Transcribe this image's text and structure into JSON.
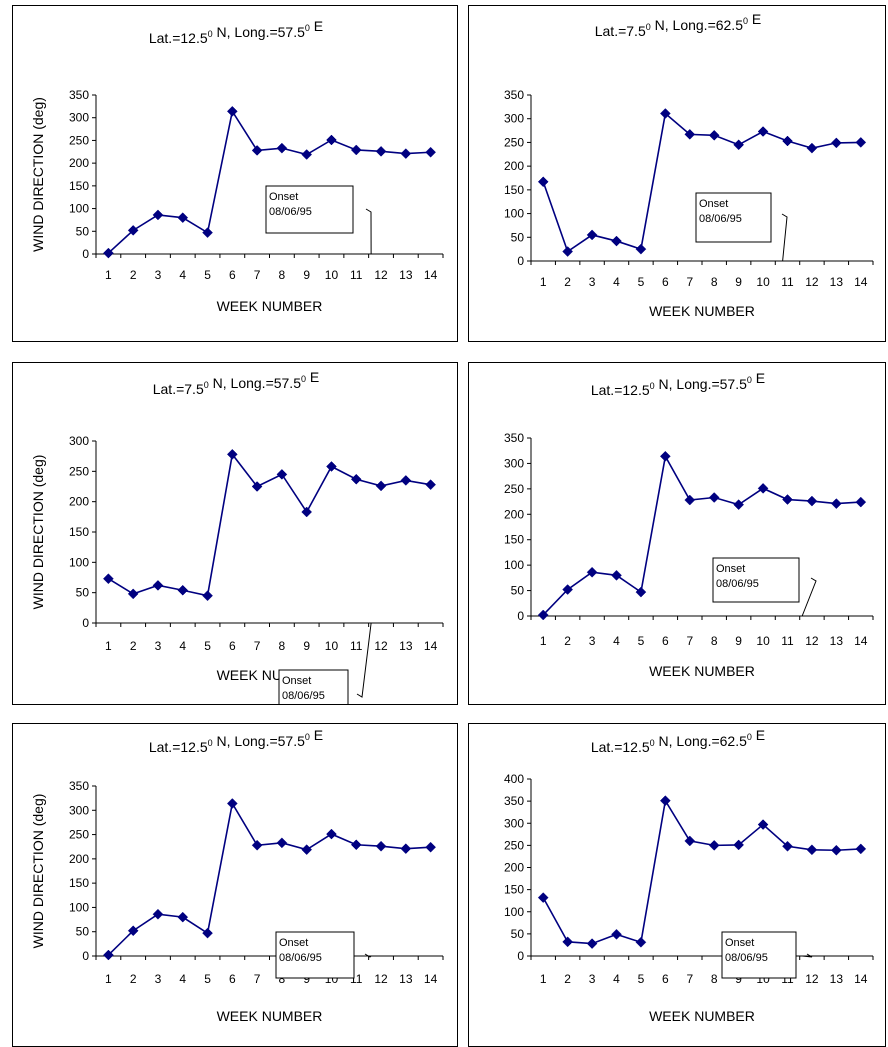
{
  "chart_data": [
    {
      "type": "line",
      "title": "Lat.=12.5",
      "title_sup": "0",
      "title_mid": " N, Long.=57.5",
      "title_sup2": "0",
      "title_end": " E",
      "xlabel": "WEEK NUMBER",
      "ylabel": "WIND DIRECTION (deg)",
      "x": [
        1,
        2,
        3,
        4,
        5,
        6,
        7,
        8,
        9,
        10,
        11,
        12,
        13,
        14
      ],
      "values": [
        2,
        52,
        86,
        80,
        47,
        314,
        228,
        233,
        219,
        251,
        229,
        226,
        221,
        224
      ],
      "yticks": [
        0,
        50,
        100,
        150,
        200,
        250,
        300,
        350
      ],
      "ylim": [
        0,
        350
      ],
      "annotation": {
        "line1": "Onset",
        "line2": "08/06/95",
        "week": 11.6
      },
      "line_color": "#000080"
    },
    {
      "type": "line",
      "title": "Lat.=7.5",
      "title_sup": "0",
      "title_mid": " N, Long.=62.5",
      "title_sup2": "0",
      "title_end": " E",
      "xlabel": "WEEK NUMBER",
      "ylabel": "",
      "x": [
        1,
        2,
        3,
        4,
        5,
        6,
        7,
        8,
        9,
        10,
        11,
        12,
        13,
        14
      ],
      "values": [
        167,
        20,
        55,
        42,
        25,
        311,
        267,
        265,
        245,
        273,
        253,
        238,
        249,
        250
      ],
      "yticks": [
        0,
        50,
        100,
        150,
        200,
        250,
        300,
        350
      ],
      "ylim": [
        0,
        350
      ],
      "annotation": {
        "line1": "Onset",
        "line2": "08/06/95",
        "week": 10.8
      },
      "line_color": "#000080"
    },
    {
      "type": "line",
      "title": "Lat.=7.5",
      "title_sup": "0",
      "title_mid": " N, Long.=57.5",
      "title_sup2": "0",
      "title_end": " E",
      "xlabel": "WEEK NUMBER",
      "ylabel": "WIND DIRECTION (deg)",
      "x": [
        1,
        2,
        3,
        4,
        5,
        6,
        7,
        8,
        9,
        10,
        11,
        12,
        13,
        14
      ],
      "values": [
        73,
        48,
        62,
        54,
        45,
        278,
        225,
        245,
        183,
        258,
        237,
        226,
        235,
        228
      ],
      "yticks": [
        0,
        50,
        100,
        150,
        200,
        250,
        300
      ],
      "ylim": [
        0,
        300
      ],
      "annotation": {
        "line1": "Onset",
        "line2": "08/06/95",
        "week": 11.6
      },
      "line_color": "#000080"
    },
    {
      "type": "line",
      "title": "Lat.=12.5",
      "title_sup": "0",
      "title_mid": " N, Long.=57.5",
      "title_sup2": "0",
      "title_end": " E",
      "xlabel": "WEEK NUMBER",
      "ylabel": "",
      "x": [
        1,
        2,
        3,
        4,
        5,
        6,
        7,
        8,
        9,
        10,
        11,
        12,
        13,
        14
      ],
      "values": [
        2,
        52,
        86,
        80,
        47,
        314,
        228,
        233,
        219,
        251,
        229,
        226,
        221,
        224
      ],
      "yticks": [
        0,
        50,
        100,
        150,
        200,
        250,
        300,
        350
      ],
      "ylim": [
        0,
        350
      ],
      "annotation": {
        "line1": "Onset",
        "line2": "08/06/95",
        "week": 11.6
      },
      "line_color": "#000080"
    },
    {
      "type": "line",
      "title": "Lat.=12.5",
      "title_sup": "0",
      "title_mid": " N, Long.=57.5",
      "title_sup2": "0",
      "title_end": " E",
      "xlabel": "WEEK NUMBER",
      "ylabel": "WIND DIRECTION (deg)",
      "x": [
        1,
        2,
        3,
        4,
        5,
        6,
        7,
        8,
        9,
        10,
        11,
        12,
        13,
        14
      ],
      "values": [
        2,
        52,
        86,
        80,
        47,
        314,
        228,
        233,
        219,
        251,
        229,
        226,
        221,
        224
      ],
      "yticks": [
        0,
        50,
        100,
        150,
        200,
        250,
        300,
        350
      ],
      "ylim": [
        0,
        350
      ],
      "annotation": {
        "line1": "Onset",
        "line2": "08/06/95",
        "week": 11.6
      },
      "line_color": "#000080"
    },
    {
      "type": "line",
      "title": "Lat.=12.5",
      "title_sup": "0",
      "title_mid": " N, Long.=62.5",
      "title_sup2": "0",
      "title_end": " E",
      "xlabel": "WEEK NUMBER",
      "ylabel": "",
      "x": [
        1,
        2,
        3,
        4,
        5,
        6,
        7,
        8,
        9,
        10,
        11,
        12,
        13,
        14
      ],
      "values": [
        132,
        32,
        28,
        49,
        31,
        351,
        260,
        250,
        251,
        297,
        248,
        240,
        239,
        242
      ],
      "yticks": [
        0,
        50,
        100,
        150,
        200,
        250,
        300,
        350,
        400
      ],
      "ylim": [
        0,
        400
      ],
      "annotation": {
        "line1": "Onset",
        "line2": "08/06/95",
        "week": 11.6
      },
      "line_color": "#000080"
    }
  ]
}
